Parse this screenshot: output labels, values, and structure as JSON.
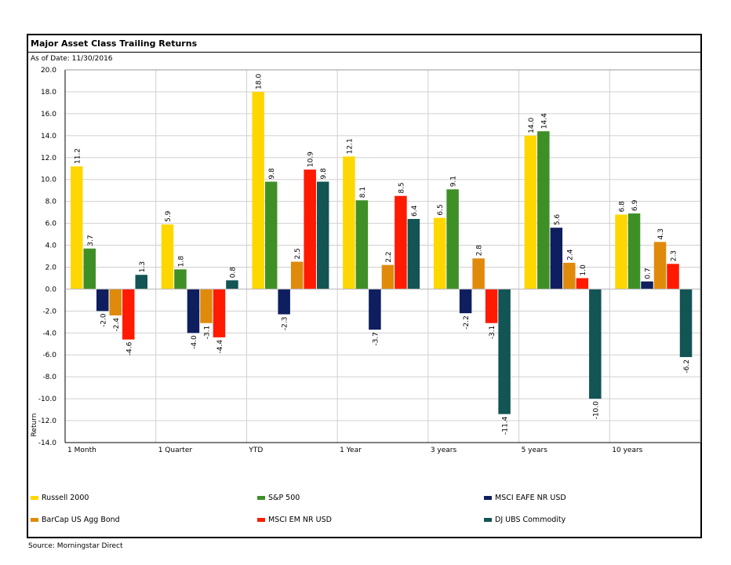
{
  "header": {
    "title": "Major Asset Class Trailing Returns",
    "as_of": "As of Date: 11/30/2016"
  },
  "footer": {
    "source": "Source: Morningstar Direct"
  },
  "chart_data": {
    "type": "bar",
    "title": "Major Asset Class Trailing Returns",
    "ylabel": "Return",
    "xlabel": "",
    "ylim": [
      -14,
      20
    ],
    "ytick_step": 2,
    "grid": true,
    "legend_position": "bottom",
    "categories": [
      "1 Month",
      "1 Quarter",
      "YTD",
      "1 Year",
      "3 years",
      "5 years",
      "10 years"
    ],
    "series": [
      {
        "name": "Russell 2000",
        "color": "#FFD700",
        "values": [
          11.2,
          5.9,
          18.0,
          12.1,
          6.5,
          14.0,
          6.8
        ]
      },
      {
        "name": "S&P 500",
        "color": "#3F8F27",
        "values": [
          3.7,
          1.8,
          9.8,
          8.1,
          9.1,
          14.4,
          6.9
        ]
      },
      {
        "name": "MSCI EAFE NR USD",
        "color": "#0F1E5E",
        "values": [
          -2.0,
          -4.0,
          -2.3,
          -3.7,
          -2.2,
          5.6,
          0.7
        ]
      },
      {
        "name": "BarCap US Agg Bond",
        "color": "#E08A0B",
        "values": [
          -2.4,
          -3.1,
          2.5,
          2.2,
          2.8,
          2.4,
          4.3
        ]
      },
      {
        "name": "MSCI EM NR USD",
        "color": "#FF1A00",
        "values": [
          -4.6,
          -4.4,
          10.9,
          8.5,
          -3.1,
          1.0,
          2.3
        ]
      },
      {
        "name": "DJ UBS Commodity",
        "color": "#135454",
        "values": [
          1.3,
          0.8,
          9.8,
          6.4,
          -11.4,
          -10.0,
          -6.2
        ]
      }
    ]
  }
}
